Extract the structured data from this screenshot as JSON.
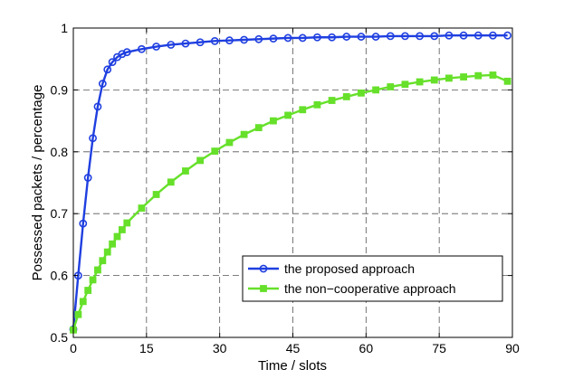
{
  "chart_data": {
    "type": "line",
    "xlabel": "Time / slots",
    "ylabel": "Possessed packets / percentage",
    "xlim": [
      0,
      90
    ],
    "ylim": [
      0.5,
      1
    ],
    "xticks": [
      "0",
      "15",
      "30",
      "45",
      "60",
      "75",
      "90"
    ],
    "xtick_values": [
      0,
      15,
      30,
      45,
      60,
      75,
      90
    ],
    "yticks": [
      "0.5",
      "0.6",
      "0.7",
      "0.8",
      "0.9",
      "1"
    ],
    "ytick_values": [
      0.5,
      0.6,
      0.7,
      0.8,
      0.9,
      1.0
    ],
    "grid": true,
    "legend_position": "bottom-right",
    "series": [
      {
        "name": "the proposed approach",
        "color": "#1f3fe0",
        "marker": "circle",
        "points": [
          [
            0,
            0.513
          ],
          [
            1,
            0.6
          ],
          [
            2,
            0.684
          ],
          [
            3,
            0.758
          ],
          [
            4,
            0.822
          ],
          [
            5,
            0.873
          ],
          [
            6,
            0.91
          ],
          [
            7,
            0.933
          ],
          [
            8,
            0.945
          ],
          [
            9,
            0.953
          ],
          [
            10,
            0.958
          ],
          [
            11,
            0.961
          ],
          [
            14,
            0.966
          ],
          [
            17,
            0.97
          ],
          [
            20,
            0.973
          ],
          [
            23,
            0.975
          ],
          [
            26,
            0.977
          ],
          [
            29,
            0.979
          ],
          [
            32,
            0.98
          ],
          [
            35,
            0.981
          ],
          [
            38,
            0.982
          ],
          [
            41,
            0.983
          ],
          [
            44,
            0.984
          ],
          [
            47,
            0.984
          ],
          [
            50,
            0.985
          ],
          [
            53,
            0.985
          ],
          [
            56,
            0.986
          ],
          [
            59,
            0.986
          ],
          [
            62,
            0.986
          ],
          [
            65,
            0.987
          ],
          [
            68,
            0.987
          ],
          [
            71,
            0.987
          ],
          [
            74,
            0.987
          ],
          [
            77,
            0.988
          ],
          [
            80,
            0.988
          ],
          [
            83,
            0.988
          ],
          [
            86,
            0.988
          ],
          [
            89,
            0.988
          ]
        ]
      },
      {
        "name": "the non−cooperative approach",
        "color": "#66e02a",
        "marker": "square",
        "points": [
          [
            0,
            0.512
          ],
          [
            1,
            0.537
          ],
          [
            2,
            0.558
          ],
          [
            3,
            0.576
          ],
          [
            4,
            0.593
          ],
          [
            5,
            0.609
          ],
          [
            6,
            0.624
          ],
          [
            7,
            0.638
          ],
          [
            8,
            0.651
          ],
          [
            9,
            0.663
          ],
          [
            10,
            0.674
          ],
          [
            11,
            0.685
          ],
          [
            14,
            0.709
          ],
          [
            17,
            0.731
          ],
          [
            20,
            0.751
          ],
          [
            23,
            0.769
          ],
          [
            26,
            0.786
          ],
          [
            29,
            0.801
          ],
          [
            32,
            0.815
          ],
          [
            35,
            0.828
          ],
          [
            38,
            0.839
          ],
          [
            41,
            0.85
          ],
          [
            44,
            0.859
          ],
          [
            47,
            0.868
          ],
          [
            50,
            0.876
          ],
          [
            53,
            0.883
          ],
          [
            56,
            0.889
          ],
          [
            59,
            0.895
          ],
          [
            62,
            0.9
          ],
          [
            65,
            0.905
          ],
          [
            68,
            0.909
          ],
          [
            71,
            0.913
          ],
          [
            74,
            0.916
          ],
          [
            77,
            0.919
          ],
          [
            80,
            0.921
          ],
          [
            83,
            0.923
          ],
          [
            86,
            0.924
          ],
          [
            89,
            0.914
          ]
        ]
      }
    ]
  }
}
